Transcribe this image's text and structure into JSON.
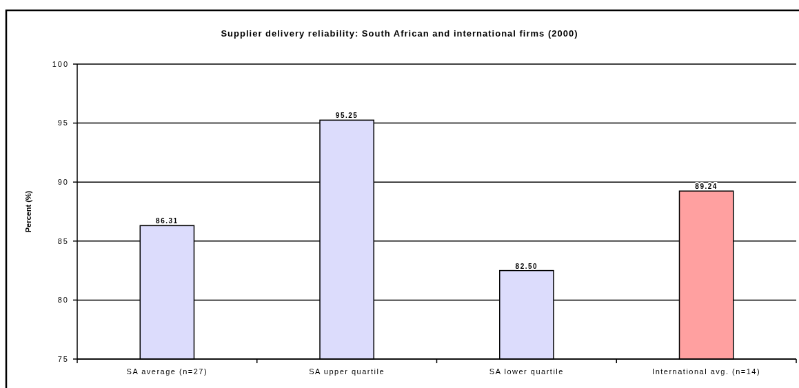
{
  "chart_data": {
    "type": "bar",
    "title": "Supplier delivery reliability: South African and international firms (2000)",
    "ylabel": "Percent (%)",
    "categories": [
      "SA average (n=27)",
      "SA upper quartile",
      "SA lower quartile",
      "International avg. (n=14)"
    ],
    "values": [
      86.31,
      95.25,
      82.5,
      89.24
    ],
    "value_labels": [
      "86.31",
      "95.25",
      "82.50",
      "89.24"
    ],
    "colors": [
      "#dcdcfc",
      "#dcdcfc",
      "#dcdcfc",
      "#ffa0a0"
    ],
    "ylim": [
      75,
      100
    ],
    "yticks": [
      75,
      80,
      85,
      90,
      95,
      100
    ],
    "grid": "y"
  }
}
